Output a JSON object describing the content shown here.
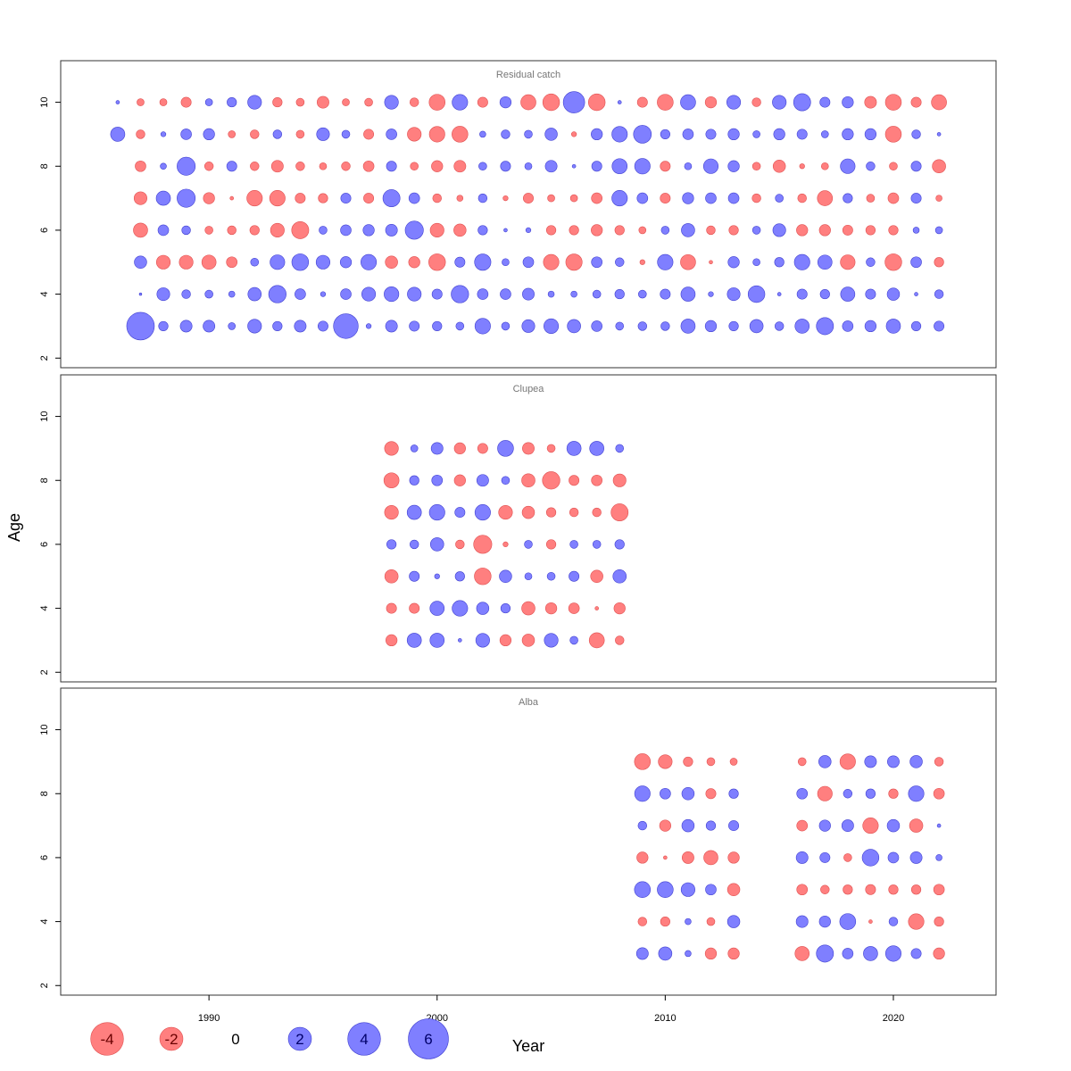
{
  "chart_data": {
    "type": "scatter",
    "subtype": "bubble-residuals",
    "xlabel": "Year",
    "ylabel": "Age",
    "x_ticks": [
      1990,
      2000,
      2010,
      2020
    ],
    "y_ticks": [
      2,
      4,
      6,
      8,
      10
    ],
    "xlim": [
      1983.5,
      2024.5
    ],
    "ylim": [
      1.7,
      11.3
    ],
    "colors": {
      "negative": "#ff7f7f",
      "positive": "#7f7fff",
      "negative_edge": "#e05050",
      "positive_edge": "#4040d0"
    },
    "legend": {
      "values": [
        -4,
        -2,
        0,
        2,
        4,
        6
      ],
      "labels": [
        "-4",
        "-2",
        "0",
        "2",
        "4",
        "6"
      ]
    },
    "panels": [
      {
        "title": "Residual catch",
        "years": [
          1986,
          1987,
          1988,
          1989,
          1990,
          1991,
          1992,
          1993,
          1994,
          1995,
          1996,
          1997,
          1998,
          1999,
          2000,
          2001,
          2002,
          2003,
          2004,
          2005,
          2006,
          2007,
          2008,
          2009,
          2010,
          2011,
          2012,
          2013,
          2014,
          2015,
          2016,
          2017,
          2018,
          2019,
          2020,
          2021,
          2022
        ],
        "ages": [
          3,
          4,
          5,
          6,
          7,
          8,
          9,
          10
        ],
        "residuals": [
          [
            0.0,
            6.0,
            0.7,
            1.1,
            1.1,
            0.4,
            1.5,
            0.7,
            1.1,
            0.8,
            4.8,
            0.2,
            1.1,
            0.8,
            0.7,
            0.5,
            1.9,
            0.5,
            1.3,
            1.7,
            1.4,
            0.9,
            0.5,
            0.6,
            0.6,
            1.6,
            1.0,
            0.7,
            1.4,
            0.6,
            1.6,
            2.3,
            0.9,
            1.0,
            1.6,
            0.7,
            0.8
          ],
          [
            0.0,
            0.05,
            1.3,
            0.6,
            0.5,
            0.3,
            1.4,
            2.4,
            0.9,
            0.2,
            0.9,
            1.5,
            1.7,
            1.5,
            0.8,
            2.4,
            0.9,
            0.9,
            1.1,
            0.3,
            0.3,
            0.5,
            0.7,
            0.5,
            0.8,
            1.6,
            0.2,
            1.3,
            2.2,
            0.1,
            0.8,
            0.7,
            1.6,
            0.8,
            1.2,
            0.1,
            0.6
          ],
          [
            0.0,
            1.2,
            -1.5,
            -1.5,
            -1.6,
            -0.9,
            0.5,
            1.7,
            2.2,
            1.5,
            1.0,
            1.9,
            -1.2,
            -1.0,
            -2.2,
            0.8,
            2.1,
            0.4,
            0.9,
            -1.9,
            -2.1,
            0.9,
            0.6,
            -0.2,
            1.9,
            -1.8,
            -0.1,
            1.0,
            0.4,
            0.7,
            1.9,
            1.6,
            -1.7,
            0.6,
            -2.2,
            0.9,
            -0.7
          ],
          [
            0.0,
            -1.6,
            0.9,
            0.6,
            -0.5,
            -0.6,
            -0.7,
            -1.5,
            -2.3,
            0.5,
            0.9,
            1.0,
            1.1,
            2.6,
            -1.5,
            -1.2,
            0.7,
            0.1,
            0.2,
            -0.7,
            -0.7,
            -1.0,
            -0.7,
            -0.4,
            0.5,
            1.4,
            -0.6,
            -0.7,
            0.5,
            1.3,
            -1.0,
            -1.0,
            -0.8,
            -0.7,
            -0.7,
            0.3,
            0.4
          ],
          [
            0.0,
            -1.3,
            1.6,
            2.6,
            -1.0,
            -0.1,
            -1.9,
            -1.9,
            -0.8,
            -0.7,
            0.8,
            -0.8,
            2.3,
            0.9,
            -0.6,
            -0.3,
            0.6,
            -0.2,
            -0.8,
            -0.4,
            -0.4,
            -0.9,
            1.9,
            0.9,
            -0.8,
            1.0,
            0.9,
            0.9,
            -0.6,
            0.5,
            -0.6,
            -1.8,
            0.7,
            -0.5,
            -0.9,
            0.8,
            -0.3
          ],
          [
            0.0,
            -0.9,
            0.3,
            2.6,
            -0.6,
            0.8,
            -0.6,
            -1.1,
            -0.6,
            -0.4,
            -0.6,
            -0.9,
            0.8,
            -0.5,
            -1.0,
            -1.1,
            0.5,
            0.8,
            0.4,
            1.1,
            0.1,
            0.8,
            1.8,
            1.9,
            -0.8,
            0.4,
            1.7,
            1.0,
            -0.5,
            -1.2,
            -0.2,
            -0.4,
            1.7,
            0.6,
            -0.5,
            0.8,
            -1.4
          ],
          [
            1.6,
            -0.6,
            0.2,
            0.9,
            1.0,
            -0.4,
            -0.6,
            0.6,
            -0.5,
            1.3,
            0.5,
            -0.8,
            0.9,
            -1.5,
            -1.9,
            -2.0,
            0.3,
            0.6,
            0.5,
            1.2,
            -0.2,
            1.0,
            1.9,
            2.5,
            0.7,
            0.9,
            0.8,
            1.0,
            0.4,
            1.0,
            0.8,
            0.4,
            1.0,
            1.0,
            -2.0,
            0.6,
            0.1
          ],
          [
            0.1,
            -0.4,
            -0.4,
            -0.8,
            0.4,
            0.7,
            1.5,
            -0.7,
            -0.5,
            -1.1,
            -0.4,
            -0.5,
            1.5,
            -0.6,
            -2.0,
            1.9,
            -0.8,
            1.0,
            -1.8,
            -2.2,
            3.6,
            -2.2,
            0.1,
            -0.8,
            -2.0,
            1.8,
            -1.0,
            1.5,
            -0.6,
            1.5,
            2.3,
            0.8,
            1.0,
            -1.1,
            -2.0,
            -0.8,
            -1.8
          ]
        ]
      },
      {
        "title": "Clupea",
        "years": [
          1998,
          1999,
          2000,
          2001,
          2002,
          2003,
          2004,
          2005,
          2006,
          2007,
          2008
        ],
        "ages": [
          3,
          4,
          5,
          6,
          7,
          8,
          9
        ],
        "residuals": [
          [
            -1.0,
            1.6,
            1.6,
            0.1,
            1.5,
            -1.0,
            -1.2,
            1.5,
            0.5,
            -1.8,
            -0.6
          ],
          [
            -0.8,
            -0.8,
            1.6,
            1.9,
            1.2,
            0.7,
            -1.4,
            -1.0,
            -0.9,
            -0.1,
            -1.0
          ],
          [
            -1.4,
            0.8,
            0.2,
            0.7,
            -2.2,
            1.2,
            0.4,
            0.5,
            0.8,
            -1.2,
            1.4
          ],
          [
            0.7,
            0.6,
            1.4,
            -0.6,
            -2.6,
            -0.2,
            0.5,
            -0.7,
            0.5,
            0.5,
            0.7
          ],
          [
            -1.5,
            1.6,
            1.9,
            0.8,
            1.9,
            -1.5,
            -1.2,
            -0.7,
            -0.6,
            -0.6,
            -2.3
          ],
          [
            -1.8,
            0.7,
            0.9,
            -1.0,
            1.1,
            0.5,
            -1.4,
            -2.4,
            -0.8,
            -0.9,
            -1.3
          ],
          [
            -1.5,
            0.4,
            1.1,
            -1.0,
            -0.8,
            2.0,
            -1.1,
            -0.5,
            1.6,
            1.6,
            0.5
          ]
        ]
      },
      {
        "title": "Alba",
        "years": [
          2009,
          2010,
          2011,
          2012,
          2013,
          2016,
          2017,
          2018,
          2019,
          2020,
          2021,
          2022
        ],
        "ages": [
          3,
          4,
          5,
          6,
          7,
          8,
          9
        ],
        "residuals": [
          [
            1.1,
            1.4,
            0.3,
            -1.0,
            -1.0,
            -1.6,
            2.3,
            0.9,
            1.6,
            1.9,
            0.8,
            -1.0
          ],
          [
            -0.6,
            -0.7,
            0.3,
            -0.5,
            1.2,
            1.1,
            1.0,
            2.0,
            -0.1,
            0.6,
            -1.9,
            -0.7
          ],
          [
            2.0,
            2.0,
            1.5,
            0.9,
            -1.2,
            -0.9,
            -0.6,
            -0.7,
            -0.8,
            -0.7,
            -0.7,
            -0.9
          ],
          [
            -1.0,
            -0.1,
            -1.1,
            -1.6,
            -1.0,
            1.1,
            0.8,
            -0.5,
            2.2,
            0.9,
            1.1,
            0.3
          ],
          [
            0.6,
            -1.0,
            1.2,
            0.7,
            0.8,
            -0.9,
            1.0,
            1.1,
            -1.9,
            1.2,
            -1.4,
            0.1
          ],
          [
            1.9,
            0.9,
            1.2,
            -0.8,
            0.7,
            0.9,
            -1.7,
            0.6,
            0.7,
            -0.7,
            1.9,
            -0.9
          ],
          [
            -2.0,
            -1.5,
            -0.7,
            -0.5,
            -0.4,
            -0.5,
            1.2,
            -1.9,
            1.1,
            1.1,
            1.2,
            -0.6
          ]
        ]
      }
    ]
  }
}
